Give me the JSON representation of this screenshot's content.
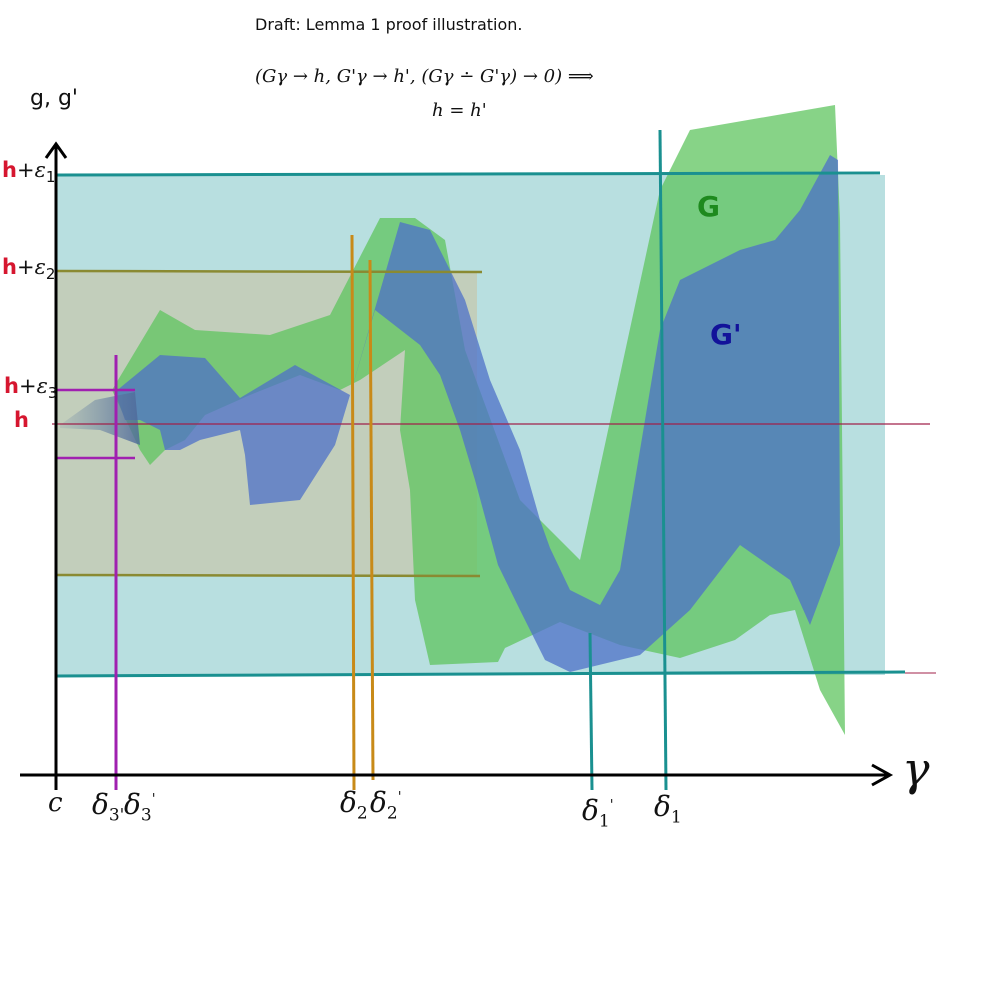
{
  "title": "Draft: Lemma 1 proof illustration.",
  "formula_line1": "(Gγ → h, G'γ → h', (Gγ ∸ G'γ) → 0) ⟹",
  "formula_line2": "h = h'",
  "axes": {
    "y_label": "g, g'",
    "x_label": "γ",
    "origin_label": "c"
  },
  "h_labels": [
    {
      "h": "h",
      "rest": "+",
      "eps": "ε",
      "sub": "1"
    },
    {
      "h": "h",
      "rest": "+",
      "eps": "ε",
      "sub": "2"
    },
    {
      "h": "h",
      "rest": "+",
      "eps": "ε",
      "sub": "3"
    },
    {
      "h": "h"
    }
  ],
  "delta_ticks": [
    {
      "sym": "δ",
      "sub": "3'",
      "sup": ""
    },
    {
      "sym": "δ",
      "sub": "3",
      "sup": "'"
    },
    {
      "sym": "δ",
      "sub": "2",
      "sup": ""
    },
    {
      "sym": "δ",
      "sub": "2",
      "sup": "'"
    },
    {
      "sym": "δ",
      "sub": "1",
      "sup": "'"
    },
    {
      "sym": "δ",
      "sub": "1",
      "sup": ""
    }
  ],
  "series": [
    {
      "name": "G",
      "color": "#1e8a1e"
    },
    {
      "name": "G'",
      "color": "#12129a"
    }
  ],
  "colors": {
    "band_eps1": "#b8dfe0",
    "band_eps2": "#c3ccb7",
    "band_G": "#5fc45f",
    "band_Gp": "#5577cc",
    "line_teal": "#1a9090",
    "line_olive": "#8a8a32",
    "line_orange": "#c88a18",
    "line_purple": "#a020b0",
    "line_h": "#a0204a",
    "h_red": "#d6162f"
  }
}
